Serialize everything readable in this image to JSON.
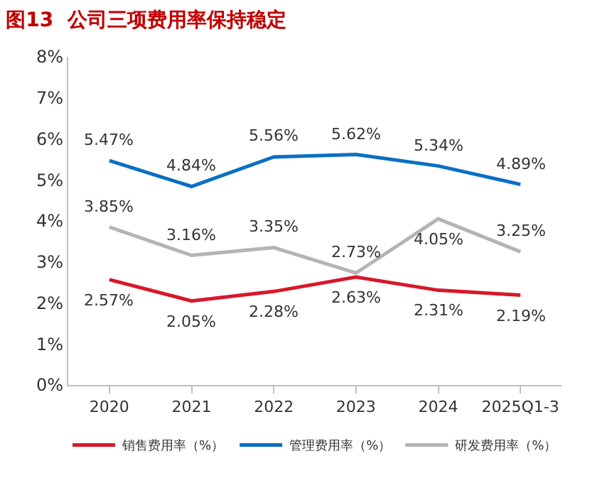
{
  "chart_data": {
    "type": "line",
    "title": "图13  公司三项费用率保持稳定",
    "categories": [
      "2020",
      "2021",
      "2022",
      "2023",
      "2024",
      "2025Q1-3"
    ],
    "series": [
      {
        "name": "销售费用率（%）",
        "color": "#d7182a",
        "values": [
          2.57,
          2.05,
          2.28,
          2.63,
          2.31,
          2.19
        ],
        "value_labels": [
          "2.57%",
          "2.05%",
          "2.28%",
          "2.63%",
          "2.31%",
          "2.19%"
        ]
      },
      {
        "name": "管理费用率（%）",
        "color": "#0a6fc2",
        "values": [
          5.47,
          4.84,
          5.56,
          5.62,
          5.34,
          4.89
        ],
        "value_labels": [
          "5.47%",
          "4.84%",
          "5.56%",
          "5.62%",
          "5.34%",
          "4.89%"
        ]
      },
      {
        "name": "研发费用率（%）",
        "color": "#b4b4b4",
        "values": [
          3.85,
          3.16,
          3.35,
          2.73,
          4.05,
          3.25
        ],
        "value_labels": [
          "3.85%",
          "3.16%",
          "3.35%",
          "2.73%",
          "4.05%",
          "3.25%"
        ]
      }
    ],
    "ylim": [
      0,
      8
    ],
    "yticks": [
      {
        "value": 0,
        "label": "0%"
      },
      {
        "value": 1,
        "label": "1%"
      },
      {
        "value": 2,
        "label": "2%"
      },
      {
        "value": 3,
        "label": "3%"
      },
      {
        "value": 4,
        "label": "4%"
      },
      {
        "value": 5,
        "label": "5%"
      },
      {
        "value": 6,
        "label": "6%"
      },
      {
        "value": 7,
        "label": "7%"
      },
      {
        "value": 8,
        "label": "8%"
      }
    ],
    "legend": "bottom",
    "marker": "none",
    "line_style": "solid"
  }
}
